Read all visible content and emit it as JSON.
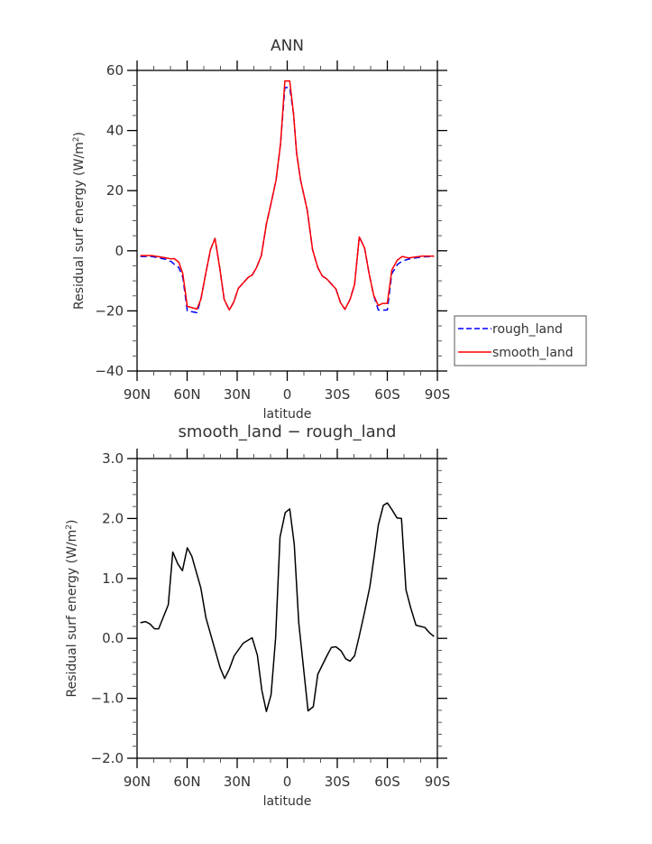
{
  "chart_data": [
    {
      "type": "line",
      "title": "ANN",
      "xlabel": "latitude",
      "ylabel": "Residual surf energy  (W/m",
      "ylabel_sup": "2",
      "ylabel_close": ")",
      "xlim": [
        90,
        -90
      ],
      "ylim": [
        -40,
        60
      ],
      "xticks": [
        90,
        60,
        30,
        0,
        -30,
        -60,
        -90
      ],
      "xtick_labels": [
        "90N",
        "60N",
        "30N",
        "0",
        "30S",
        "60S",
        "90S"
      ],
      "yticks": [
        60,
        40,
        20,
        0,
        -20,
        -40
      ],
      "ytick_labels": [
        "60",
        "40",
        "20",
        "0",
        "−20",
        "−40"
      ],
      "legend": {
        "position": "right",
        "entries": [
          "rough_land",
          "smooth_land"
        ]
      },
      "series": [
        {
          "name": "rough_land",
          "color": "#0000ff",
          "dash": "dashed",
          "x": [
            88,
            81.3,
            73.2,
            69.5,
            67.7,
            65,
            62.6,
            59.9,
            54.1,
            51.8,
            49.2,
            46,
            43.3,
            40.5,
            37.8,
            34.7,
            32,
            29.3,
            23.3,
            21,
            18.4,
            15.5,
            12.5,
            9.4,
            6.7,
            4,
            1.4,
            -1.5,
            -3.8,
            -5.6,
            -8,
            -12,
            -15.2,
            -18.3,
            -21,
            -23.8,
            -29.2,
            -31.9,
            -34.6,
            -37.7,
            -40.4,
            -43.2,
            -46.4,
            -49.1,
            -51.8,
            -54.6,
            -57.3,
            -60,
            -62.7,
            -66,
            -69,
            -72.7,
            -80.8,
            -88
          ],
          "y": [
            -1.9,
            -1.9,
            -2.8,
            -3.6,
            -4.5,
            -5.6,
            -8.8,
            -20.0,
            -20.6,
            -16.2,
            -8.6,
            0.4,
            4.1,
            -5.6,
            -16.2,
            -19.7,
            -17,
            -12.5,
            -8.8,
            -8.1,
            -5.6,
            -1.6,
            8.9,
            16.5,
            23.5,
            35.6,
            54.3,
            54.3,
            45.6,
            32.5,
            23.5,
            13.5,
            0.4,
            -5.6,
            -8.4,
            -9.4,
            -12.7,
            -17.2,
            -19.5,
            -16.2,
            -11.2,
            4.6,
            0.9,
            -7.6,
            -14.7,
            -19.7,
            -19.8,
            -19.7,
            -7.6,
            -4.6,
            -3.4,
            -2.8,
            -2.0,
            -1.9
          ]
        },
        {
          "name": "smooth_land",
          "color": "#ff0000",
          "dash": "solid",
          "x": [
            88,
            81.3,
            73.2,
            69.5,
            67.7,
            65,
            62.6,
            59.9,
            54.1,
            51.8,
            49.2,
            46,
            43.3,
            40.5,
            37.8,
            34.7,
            32,
            29.3,
            23.3,
            21,
            18.4,
            15.5,
            12.5,
            9.4,
            6.7,
            4,
            1.4,
            -1.5,
            -3.8,
            -5.6,
            -8,
            -12,
            -15.2,
            -18.3,
            -21,
            -23.8,
            -29.2,
            -31.9,
            -34.6,
            -37.7,
            -40.4,
            -43.2,
            -46.4,
            -49.1,
            -51.8,
            -54.6,
            -57.3,
            -60,
            -62.7,
            -66,
            -69,
            -72.7,
            -80.8,
            -88
          ],
          "y": [
            -1.6,
            -1.6,
            -2.3,
            -2.7,
            -2.6,
            -3.8,
            -7.6,
            -18.5,
            -19.4,
            -16.2,
            -8.6,
            0.4,
            4.1,
            -5.6,
            -16.2,
            -19.7,
            -17,
            -12.5,
            -8.8,
            -8.1,
            -5.6,
            -1.6,
            8.9,
            16.5,
            23.5,
            35.6,
            56.5,
            56.5,
            45.6,
            32.5,
            23.5,
            13.5,
            0.4,
            -5.6,
            -8.4,
            -9.4,
            -12.7,
            -17.2,
            -19.5,
            -16.2,
            -11.2,
            4.6,
            0.9,
            -7.6,
            -14.7,
            -18.2,
            -17.5,
            -17.5,
            -6.4,
            -3.1,
            -1.9,
            -2.4,
            -1.8,
            -1.8
          ]
        }
      ]
    },
    {
      "type": "line",
      "title": "smooth_land − rough_land",
      "xlabel": "latitude",
      "ylabel": "Residual surf energy  (W/m",
      "ylabel_sup": "2",
      "ylabel_close": ")",
      "xlim": [
        90,
        -90
      ],
      "ylim": [
        -2.0,
        3.0
      ],
      "xticks": [
        90,
        60,
        30,
        0,
        -30,
        -60,
        -90
      ],
      "xtick_labels": [
        "90N",
        "60N",
        "30N",
        "0",
        "30S",
        "60S",
        "90S"
      ],
      "yticks": [
        3,
        2,
        1,
        0,
        -1,
        -2
      ],
      "ytick_labels": [
        "3.0",
        "2.0",
        "1.0",
        "0.0",
        "−1.0",
        "−2.0"
      ],
      "series": [
        {
          "name": "smooth_land - rough_land",
          "color": "#000000",
          "dash": "solid",
          "x": [
            88,
            84.9,
            82.2,
            79.5,
            77.1,
            71.3,
            68.6,
            65.5,
            62.8,
            59.9,
            57.2,
            51.8,
            48.7,
            43.3,
            40.2,
            37.5,
            34.8,
            31.8,
            26.4,
            21,
            17.9,
            15.2,
            12.5,
            9.7,
            7,
            4.3,
            1.2,
            -1.5,
            -4.2,
            -6.9,
            -12.5,
            -15.6,
            -18.3,
            -23.8,
            -26.5,
            -29.2,
            -32.3,
            -35,
            -37.7,
            -40.4,
            -43.2,
            -46.4,
            -49.5,
            -52.2,
            -54.6,
            -57.6,
            -60,
            -62.7,
            -65.8,
            -68.5,
            -71.2,
            -74,
            -77.2,
            -82.6,
            -85.4,
            -88
          ],
          "y": [
            0.26,
            0.28,
            0.24,
            0.16,
            0.16,
            0.56,
            1.44,
            1.24,
            1.13,
            1.51,
            1.37,
            0.84,
            0.34,
            -0.19,
            -0.49,
            -0.67,
            -0.52,
            -0.29,
            -0.08,
            0.01,
            -0.28,
            -0.87,
            -1.22,
            -0.94,
            0.0,
            1.69,
            2.1,
            2.16,
            1.57,
            0.26,
            -1.21,
            -1.14,
            -0.6,
            -0.29,
            -0.15,
            -0.14,
            -0.21,
            -0.34,
            -0.38,
            -0.29,
            0.04,
            0.44,
            0.86,
            1.39,
            1.89,
            2.22,
            2.26,
            2.15,
            2.01,
            2.0,
            0.81,
            0.51,
            0.22,
            0.18,
            0.09,
            0.03
          ]
        }
      ]
    }
  ]
}
